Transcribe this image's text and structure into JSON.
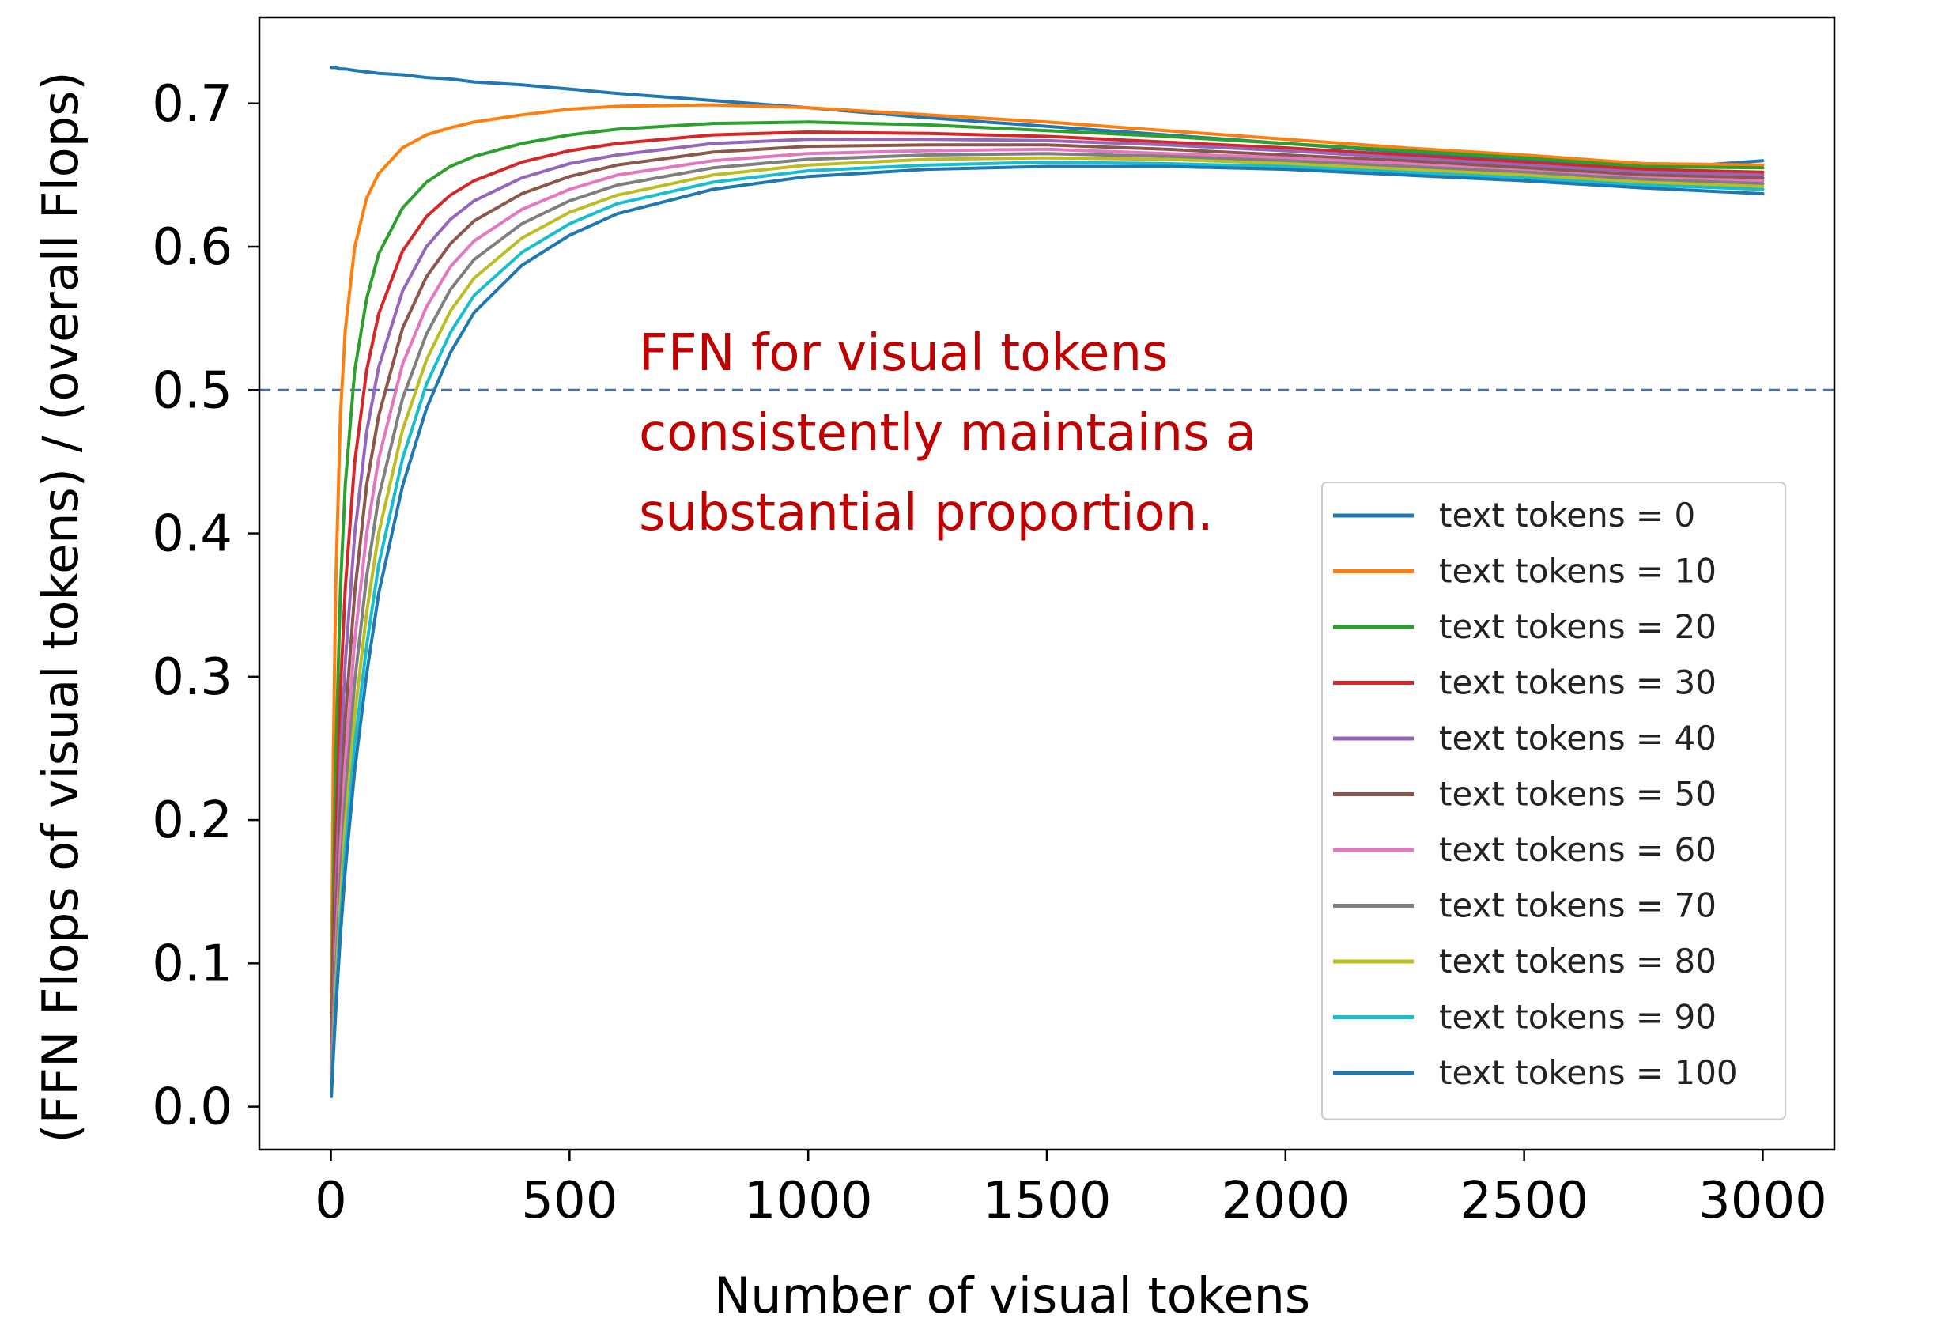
{
  "chart_data": {
    "type": "line",
    "xlabel": "Number of visual tokens",
    "ylabel": "(FFN Flops of visual tokens)  /  (overall Flops)",
    "xlim": [
      -150,
      3150
    ],
    "ylim": [
      -0.03,
      0.76
    ],
    "xticks": [
      0,
      500,
      1000,
      1500,
      2000,
      2500,
      3000
    ],
    "xtick_labels": [
      "0",
      "500",
      "1000",
      "1500",
      "2000",
      "2500",
      "3000"
    ],
    "yticks": [
      0.0,
      0.1,
      0.2,
      0.3,
      0.4,
      0.5,
      0.6,
      0.7
    ],
    "ytick_labels": [
      "0.0",
      "0.1",
      "0.2",
      "0.3",
      "0.4",
      "0.5",
      "0.6",
      "0.7"
    ],
    "grid": false,
    "legend_position": "lower-right",
    "reference_line": {
      "y": 0.5,
      "style": "dashed",
      "color": "#4a6fae"
    },
    "annotation": {
      "lines": [
        "FFN for visual tokens",
        "consistently maintains a",
        "substantial proportion."
      ],
      "color": "#c00000"
    },
    "x": [
      1,
      5,
      10,
      20,
      30,
      50,
      75,
      100,
      150,
      200,
      250,
      300,
      400,
      500,
      600,
      800,
      1000,
      1250,
      1500,
      1750,
      2000,
      2250,
      2500,
      2750,
      3000
    ],
    "series": [
      {
        "name": "text tokens = 0",
        "color": "#1f77b4",
        "values": [
          0.725,
          0.725,
          0.725,
          0.724,
          0.724,
          0.723,
          0.722,
          0.721,
          0.72,
          0.718,
          0.717,
          0.715,
          0.713,
          0.71,
          0.707,
          0.702,
          0.697,
          0.69,
          0.684,
          0.678,
          0.672,
          0.666,
          0.66,
          0.654,
          0.66
        ]
      },
      {
        "name": "text tokens = 10",
        "color": "#ff7f0e",
        "values": [
          0.066,
          0.245,
          0.363,
          0.483,
          0.542,
          0.6,
          0.634,
          0.651,
          0.669,
          0.678,
          0.683,
          0.687,
          0.692,
          0.696,
          0.698,
          0.699,
          0.697,
          0.692,
          0.687,
          0.681,
          0.675,
          0.669,
          0.664,
          0.658,
          0.657
        ]
      },
      {
        "name": "text tokens = 20",
        "color": "#2ca02c",
        "values": [
          0.034,
          0.148,
          0.242,
          0.362,
          0.434,
          0.514,
          0.564,
          0.595,
          0.627,
          0.645,
          0.656,
          0.663,
          0.672,
          0.678,
          0.682,
          0.686,
          0.687,
          0.685,
          0.681,
          0.677,
          0.672,
          0.667,
          0.662,
          0.656,
          0.655
        ]
      },
      {
        "name": "text tokens = 30",
        "color": "#d62728",
        "values": [
          0.023,
          0.106,
          0.181,
          0.29,
          0.362,
          0.45,
          0.514,
          0.553,
          0.597,
          0.621,
          0.636,
          0.646,
          0.659,
          0.667,
          0.672,
          0.678,
          0.68,
          0.679,
          0.677,
          0.673,
          0.669,
          0.664,
          0.659,
          0.654,
          0.652
        ]
      },
      {
        "name": "text tokens = 40",
        "color": "#9467bd",
        "values": [
          0.018,
          0.083,
          0.146,
          0.242,
          0.31,
          0.4,
          0.471,
          0.516,
          0.569,
          0.6,
          0.619,
          0.632,
          0.648,
          0.658,
          0.664,
          0.672,
          0.675,
          0.675,
          0.674,
          0.671,
          0.667,
          0.662,
          0.657,
          0.652,
          0.65
        ]
      },
      {
        "name": "text tokens = 50",
        "color": "#8c564b",
        "values": [
          0.014,
          0.068,
          0.122,
          0.207,
          0.27,
          0.359,
          0.434,
          0.482,
          0.543,
          0.579,
          0.602,
          0.618,
          0.637,
          0.649,
          0.657,
          0.666,
          0.67,
          0.671,
          0.671,
          0.668,
          0.664,
          0.66,
          0.655,
          0.65,
          0.648
        ]
      },
      {
        "name": "text tokens = 60",
        "color": "#e377c2",
        "values": [
          0.012,
          0.057,
          0.105,
          0.181,
          0.24,
          0.326,
          0.4,
          0.452,
          0.518,
          0.558,
          0.586,
          0.604,
          0.626,
          0.64,
          0.65,
          0.66,
          0.665,
          0.667,
          0.668,
          0.665,
          0.662,
          0.658,
          0.653,
          0.648,
          0.646
        ]
      },
      {
        "name": "text tokens = 70",
        "color": "#7f7f7f",
        "values": [
          0.01,
          0.049,
          0.092,
          0.161,
          0.216,
          0.297,
          0.37,
          0.425,
          0.494,
          0.539,
          0.57,
          0.591,
          0.616,
          0.632,
          0.643,
          0.655,
          0.661,
          0.664,
          0.665,
          0.663,
          0.66,
          0.656,
          0.652,
          0.647,
          0.644
        ]
      },
      {
        "name": "text tokens = 80",
        "color": "#bcbd22",
        "values": [
          0.009,
          0.043,
          0.082,
          0.145,
          0.196,
          0.273,
          0.345,
          0.4,
          0.472,
          0.521,
          0.555,
          0.578,
          0.606,
          0.624,
          0.636,
          0.65,
          0.657,
          0.661,
          0.662,
          0.661,
          0.658,
          0.654,
          0.65,
          0.645,
          0.642
        ]
      },
      {
        "name": "text tokens = 90",
        "color": "#17becf",
        "values": [
          0.008,
          0.038,
          0.073,
          0.131,
          0.179,
          0.253,
          0.322,
          0.378,
          0.452,
          0.504,
          0.54,
          0.566,
          0.596,
          0.616,
          0.63,
          0.645,
          0.653,
          0.657,
          0.659,
          0.658,
          0.656,
          0.652,
          0.648,
          0.643,
          0.64
        ]
      },
      {
        "name": "text tokens = 100",
        "color": "#1f77b4",
        "values": [
          0.007,
          0.035,
          0.066,
          0.12,
          0.165,
          0.235,
          0.302,
          0.358,
          0.433,
          0.487,
          0.526,
          0.554,
          0.587,
          0.608,
          0.623,
          0.64,
          0.649,
          0.654,
          0.656,
          0.656,
          0.654,
          0.65,
          0.646,
          0.641,
          0.637
        ]
      }
    ]
  }
}
